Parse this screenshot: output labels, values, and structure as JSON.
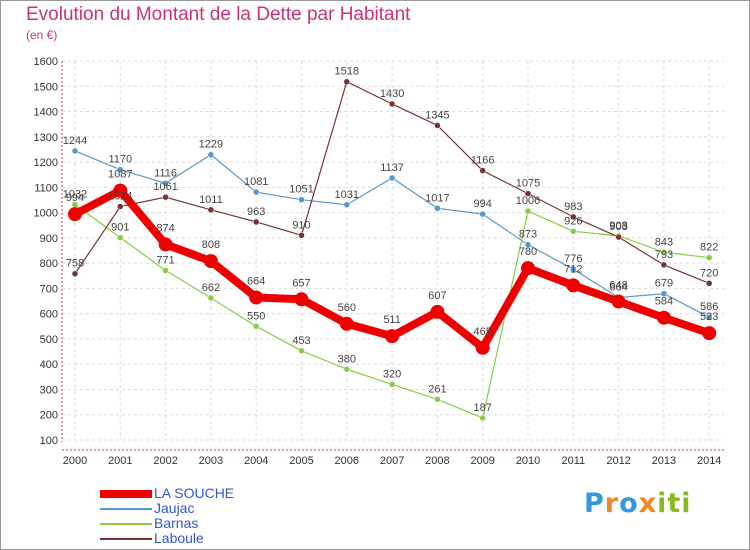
{
  "header": {
    "title": "Evolution du Montant de la Dette par Habitant",
    "subtitle": "(en €)"
  },
  "logo": {
    "letters": [
      "P",
      "r",
      "o",
      "x",
      "i",
      "t",
      "i"
    ],
    "colors": [
      "#3399dd",
      "#ee8822",
      "#3399dd",
      "#ee8822",
      "#88bb22",
      "#88bb22",
      "#88bb22"
    ]
  },
  "chart_data": {
    "type": "line",
    "x": [
      "2000",
      "2001",
      "2002",
      "2003",
      "2004",
      "2005",
      "2006",
      "2007",
      "2008",
      "2009",
      "2010",
      "2011",
      "2012",
      "2013",
      "2014"
    ],
    "ylim": [
      100,
      1600
    ],
    "yticks": [
      100,
      200,
      300,
      400,
      500,
      600,
      700,
      800,
      900,
      1000,
      1100,
      1200,
      1300,
      1400,
      1500,
      1600
    ],
    "grid": true,
    "legend": "bottom-left",
    "series": [
      {
        "name": "Jaujac",
        "color": "#5599cc",
        "values": [
          1244,
          1170,
          1116,
          1229,
          1081,
          1051,
          1031,
          1137,
          1017,
          994,
          873,
          776,
          664,
          679,
          586
        ]
      },
      {
        "name": "Barnas",
        "color": "#88cc44",
        "values": [
          1032,
          901,
          771,
          662,
          550,
          453,
          380,
          320,
          261,
          187,
          1006,
          926,
          908,
          843,
          822
        ]
      },
      {
        "name": "Laboule",
        "color": "#773333",
        "values": [
          758,
          1024,
          1061,
          1011,
          963,
          910,
          1518,
          1430,
          1345,
          1166,
          1075,
          983,
          903,
          793,
          720
        ]
      },
      {
        "name": "LA SOUCHE",
        "color": "#ee0000",
        "values": [
          994,
          1087,
          874,
          808,
          664,
          657,
          560,
          511,
          607,
          465,
          780,
          712,
          648,
          584,
          523
        ]
      }
    ]
  }
}
